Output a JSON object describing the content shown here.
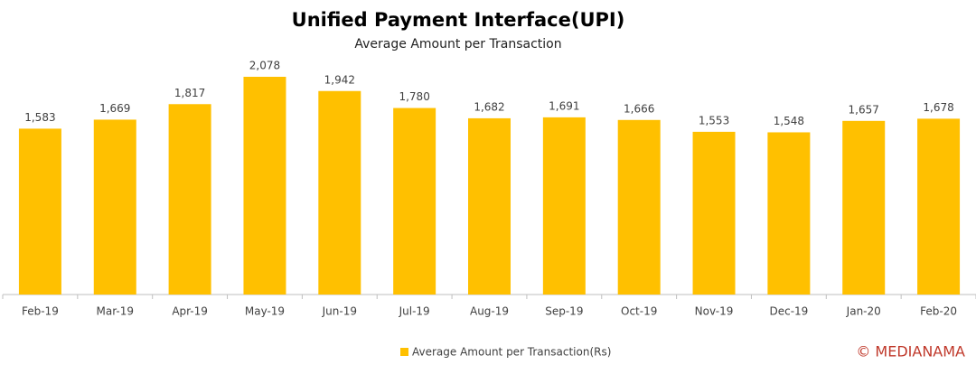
{
  "chart_data": {
    "type": "bar",
    "title": "Unified Payment Interface(UPI)",
    "subtitle": "Average Amount per Transaction",
    "categories": [
      "Feb-19",
      "Mar-19",
      "Apr-19",
      "May-19",
      "Jun-19",
      "Jul-19",
      "Aug-19",
      "Sep-19",
      "Oct-19",
      "Nov-19",
      "Dec-19",
      "Jan-20",
      "Feb-20"
    ],
    "series": [
      {
        "name": "Average Amount per Transaction(Rs)",
        "color": "#ffc000",
        "values": [
          1583,
          1669,
          1817,
          2078,
          1942,
          1780,
          1682,
          1691,
          1666,
          1553,
          1548,
          1657,
          1678
        ],
        "value_labels": [
          "1,583",
          "1,669",
          "1,817",
          "2,078",
          "1,942",
          "1,780",
          "1,682",
          "1,691",
          "1,666",
          "1,553",
          "1,548",
          "1,657",
          "1,678"
        ]
      }
    ],
    "legend": "bottom",
    "credit": "© MEDIANAMA"
  }
}
